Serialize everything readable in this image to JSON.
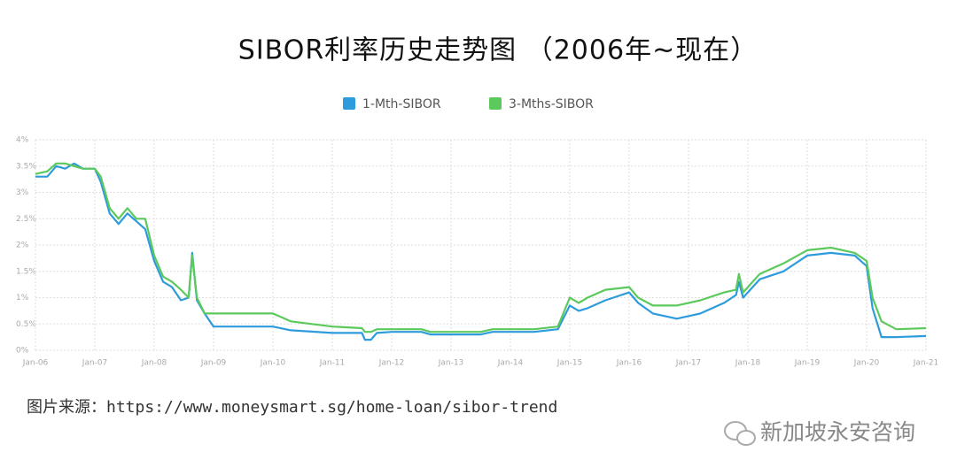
{
  "chart_data": {
    "type": "line",
    "title": "SIBOR利率历史走势图 （2006年~现在）",
    "x": [
      2006.0,
      2006.2,
      2006.35,
      2006.5,
      2006.65,
      2006.8,
      2007.0,
      2007.1,
      2007.25,
      2007.4,
      2007.55,
      2007.7,
      2007.85,
      2008.0,
      2008.15,
      2008.3,
      2008.45,
      2008.58,
      2008.64,
      2008.72,
      2008.85,
      2009.0,
      2009.5,
      2010.0,
      2010.3,
      2011.0,
      2011.5,
      2011.55,
      2011.65,
      2011.75,
      2012.0,
      2012.5,
      2012.65,
      2013.5,
      2013.7,
      2014.4,
      2014.8,
      2015.0,
      2015.15,
      2015.3,
      2015.6,
      2016.0,
      2016.15,
      2016.4,
      2016.8,
      2017.2,
      2017.6,
      2017.8,
      2017.85,
      2017.92,
      2018.2,
      2018.6,
      2019.0,
      2019.4,
      2019.8,
      2020.0,
      2020.1,
      2020.25,
      2020.5,
      2021.0
    ],
    "series": [
      {
        "name": "1-Mth-SIBOR",
        "color": "#2e9bdc",
        "values": [
          3.3,
          3.3,
          3.5,
          3.45,
          3.55,
          3.45,
          3.45,
          3.2,
          2.6,
          2.4,
          2.6,
          2.45,
          2.3,
          1.7,
          1.3,
          1.2,
          0.95,
          1.0,
          1.85,
          0.95,
          0.7,
          0.45,
          0.45,
          0.45,
          0.38,
          0.33,
          0.33,
          0.2,
          0.2,
          0.33,
          0.35,
          0.35,
          0.3,
          0.3,
          0.35,
          0.35,
          0.4,
          0.85,
          0.75,
          0.8,
          0.95,
          1.1,
          0.9,
          0.7,
          0.6,
          0.7,
          0.9,
          1.05,
          1.3,
          1.0,
          1.35,
          1.5,
          1.8,
          1.85,
          1.8,
          1.6,
          0.8,
          0.25,
          0.25,
          0.27
        ]
      },
      {
        "name": "3-Mths-SIBOR",
        "color": "#5cc95c",
        "values": [
          3.35,
          3.4,
          3.55,
          3.55,
          3.5,
          3.45,
          3.45,
          3.3,
          2.7,
          2.5,
          2.7,
          2.5,
          2.5,
          1.8,
          1.4,
          1.3,
          1.15,
          1.0,
          1.8,
          1.0,
          0.7,
          0.7,
          0.7,
          0.7,
          0.55,
          0.45,
          0.42,
          0.35,
          0.35,
          0.4,
          0.4,
          0.4,
          0.35,
          0.35,
          0.4,
          0.4,
          0.45,
          1.0,
          0.9,
          1.0,
          1.15,
          1.2,
          1.0,
          0.85,
          0.85,
          0.95,
          1.1,
          1.15,
          1.45,
          1.1,
          1.45,
          1.65,
          1.9,
          1.95,
          1.85,
          1.7,
          1.0,
          0.55,
          0.4,
          0.42
        ]
      }
    ],
    "xlim": [
      2006,
      2021
    ],
    "xticks": [
      {
        "value": 2006,
        "label": "Jan-06"
      },
      {
        "value": 2007,
        "label": "Jan-07"
      },
      {
        "value": 2008,
        "label": "Jan-08"
      },
      {
        "value": 2009,
        "label": "Jan-09"
      },
      {
        "value": 2010,
        "label": "Jan-10"
      },
      {
        "value": 2011,
        "label": "Jan-11"
      },
      {
        "value": 2012,
        "label": "Jan-12"
      },
      {
        "value": 2013,
        "label": "Jan-13"
      },
      {
        "value": 2014,
        "label": "Jan-14"
      },
      {
        "value": 2015,
        "label": "Jan-15"
      },
      {
        "value": 2016,
        "label": "Jan-16"
      },
      {
        "value": 2017,
        "label": "Jan-17"
      },
      {
        "value": 2018,
        "label": "Jan-18"
      },
      {
        "value": 2019,
        "label": "Jan-19"
      },
      {
        "value": 2020,
        "label": "Jan-20"
      },
      {
        "value": 2021,
        "label": "Jan-21"
      }
    ],
    "ylim": [
      0,
      4
    ],
    "yticks": [
      {
        "value": 0,
        "label": "0%"
      },
      {
        "value": 0.5,
        "label": "0.5%"
      },
      {
        "value": 1,
        "label": "1%"
      },
      {
        "value": 1.5,
        "label": "1.5%"
      },
      {
        "value": 2,
        "label": "2%"
      },
      {
        "value": 2.5,
        "label": "2.5%"
      },
      {
        "value": 3,
        "label": "3%"
      },
      {
        "value": 3.5,
        "label": "3.5%"
      },
      {
        "value": 4,
        "label": "4%"
      }
    ],
    "grid": true,
    "legend": "top"
  },
  "source": "图片来源：https://www.moneysmart.sg/home-loan/sibor-trend",
  "watermark": "新加坡永安咨询"
}
